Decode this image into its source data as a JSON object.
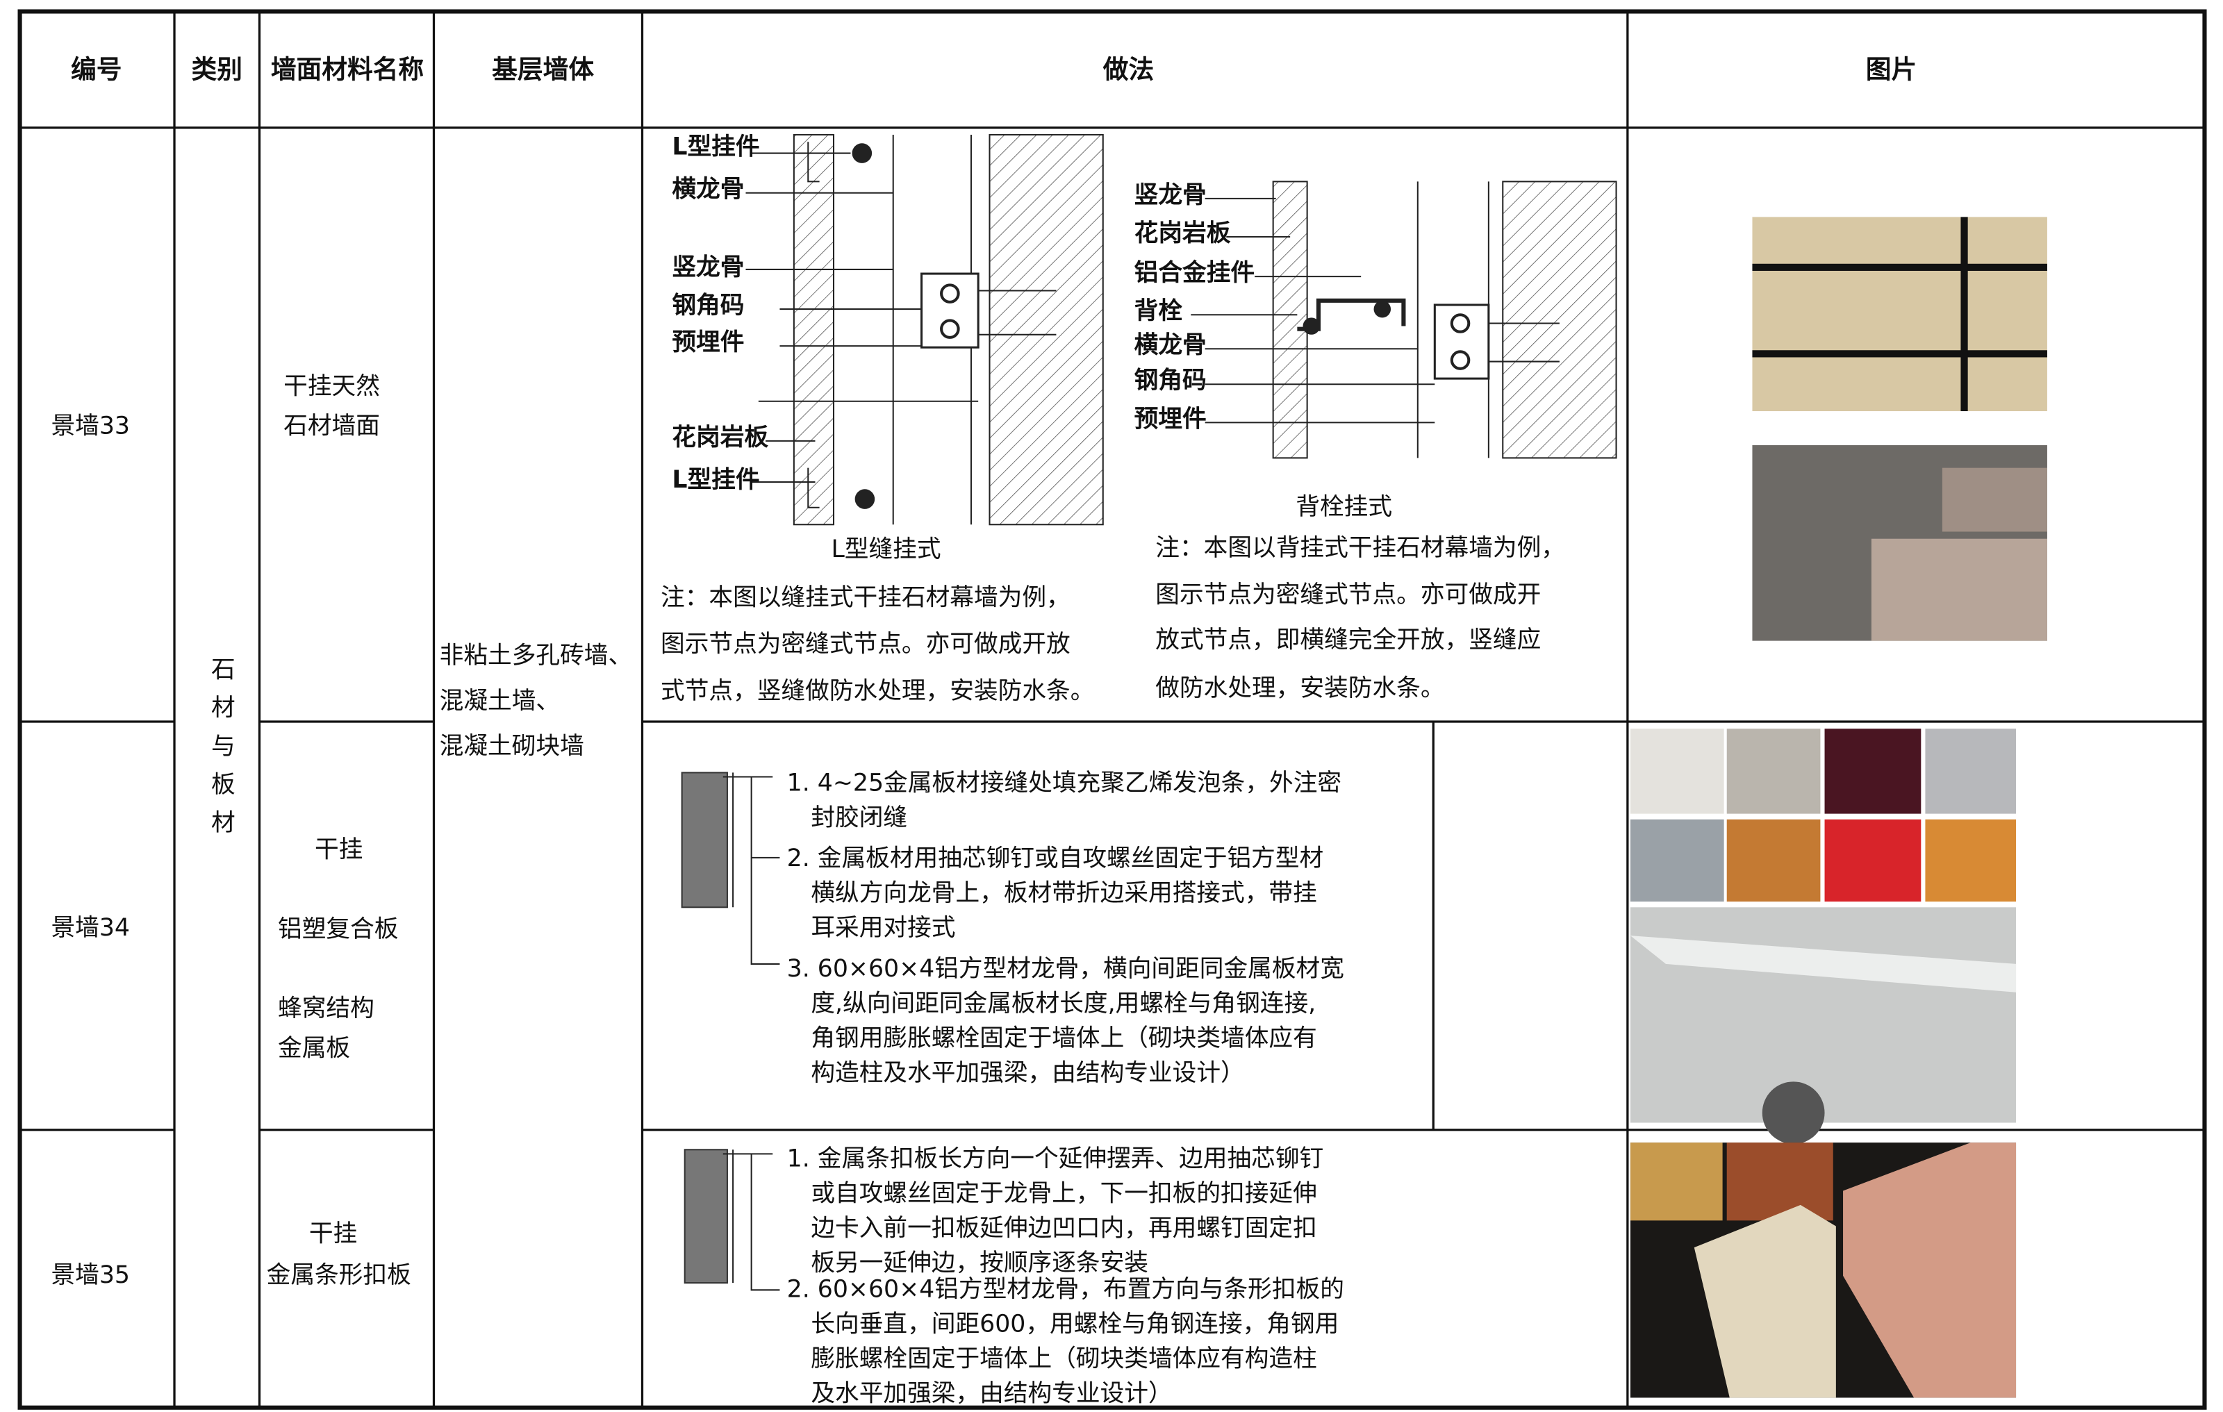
{
  "header": [
    "编号",
    "类别",
    "墙面材料名称",
    "基层墙体",
    "做法",
    "图片"
  ],
  "category": "石材与板材",
  "base_wall": [
    "非粘土多孔砖墙、",
    "混凝土墙、",
    "混凝土砌块墙"
  ],
  "rows": [
    {
      "id": "景墙33",
      "name": [
        "干挂天然",
        "石材墙面"
      ],
      "method": {
        "left": {
          "labels": [
            "L型挂件",
            "横龙骨",
            "竖龙骨",
            "钢角码",
            "预埋件",
            "花岗岩板",
            "L型挂件"
          ],
          "caption": "L型缝挂式",
          "note": [
            "注：本图以缝挂式干挂石材幕墙为例，",
            "图示节点为密缝式节点。亦可做成开放",
            "式节点，竖缝做防水处理，安装防水条。"
          ]
        },
        "right": {
          "labels": [
            "竖龙骨",
            "花岗岩板",
            "铝合金挂件",
            "背栓",
            "横龙骨",
            "钢角码",
            "预埋件"
          ],
          "caption": "背栓挂式",
          "note": [
            "注：本图以背挂式干挂石材幕墙为例，",
            "图示节点为密缝式节点。亦可做成开",
            "放式节点，即横缝完全开放，竖缝应",
            "做防水处理，安装防水条。"
          ]
        }
      }
    },
    {
      "id": "景墙34",
      "name": [
        "干挂",
        "铝塑复合板",
        "蜂窝结构",
        "金属板"
      ],
      "method": {
        "items": [
          [
            "1. 4~25金属板材接缝处填充聚乙烯发泡条，外注密",
            "封胶闭缝"
          ],
          [
            "2. 金属板材用抽芯铆钉或自攻螺丝固定于铝方型材",
            "横纵方向龙骨上，板材带折边采用搭接式，带挂",
            "耳采用对接式"
          ],
          [
            "3. 60×60×4铝方型材龙骨，横向间距同金属板材宽",
            "度,纵向间距同金属板材长度,用螺栓与角钢连接,",
            "角钢用膨胀螺栓固定于墙体上（砌块类墙体应有",
            "构造柱及水平加强梁，由结构专业设计）"
          ]
        ]
      }
    },
    {
      "id": "景墙35",
      "name": [
        "干挂",
        "金属条形扣板"
      ],
      "method": {
        "items": [
          [
            "1. 金属条扣板长方向一个延伸摆弄、边用抽芯铆钉",
            "或自攻螺丝固定于龙骨上，下一扣板的扣接延伸",
            "边卡入前一扣板延伸边凹口内，再用螺钉固定扣",
            "板另一延伸边，按顺序逐条安装"
          ],
          [
            "2. 60×60×4铝方型材龙骨，布置方向与条形扣板的",
            "长向垂直，间距600，用螺栓与角钢连接，角钢用",
            "膨胀螺栓固定于墙体上（砌块类墙体应有构造柱",
            "及水平加强梁，由结构专业设计）"
          ]
        ]
      }
    }
  ]
}
